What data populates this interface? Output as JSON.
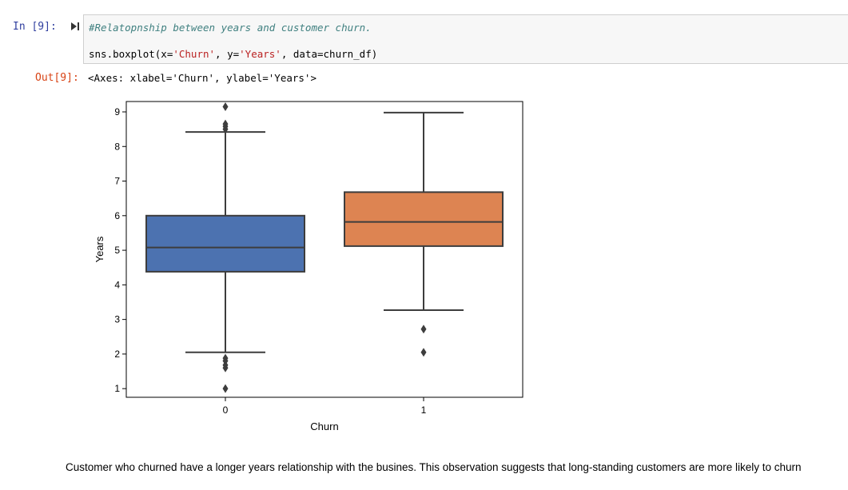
{
  "cell": {
    "in_prompt": "In [9]:",
    "code_comment": "#Relatopnship between years and customer churn.",
    "code": {
      "pre": "sns.boxplot(x=",
      "x_arg": "'Churn'",
      "mid1": ", y=",
      "y_arg": "'Years'",
      "post": ", data=churn_df)"
    },
    "out_prompt": "Out[9]:",
    "out_text": "<Axes: xlabel='Churn', ylabel='Years'>"
  },
  "chart_data": {
    "type": "box",
    "xlabel": "Churn",
    "ylabel": "Years",
    "ylim": [
      0.75,
      9.3
    ],
    "y_ticks": [
      1,
      2,
      3,
      4,
      5,
      6,
      7,
      8,
      9
    ],
    "categories": [
      "0",
      "1"
    ],
    "boxes": [
      {
        "category": "0",
        "color": "#4c72b0",
        "whisker_low": 2.05,
        "q1": 4.38,
        "median": 5.08,
        "q3": 6.0,
        "whisker_high": 8.42,
        "outliers": [
          1.0,
          1.6,
          1.68,
          1.8,
          1.88,
          8.5,
          8.58,
          8.65,
          9.15
        ]
      },
      {
        "category": "1",
        "color": "#dd8452",
        "whisker_low": 3.27,
        "q1": 5.12,
        "median": 5.82,
        "q3": 6.68,
        "whisker_high": 8.98,
        "outliers": [
          2.05,
          2.72
        ]
      }
    ],
    "grid": false,
    "legend": "none"
  },
  "markdown": {
    "text": "Customer who churned have a longer years relationship with the busines. This observation suggests that long-standing customers are more likely to churn"
  }
}
